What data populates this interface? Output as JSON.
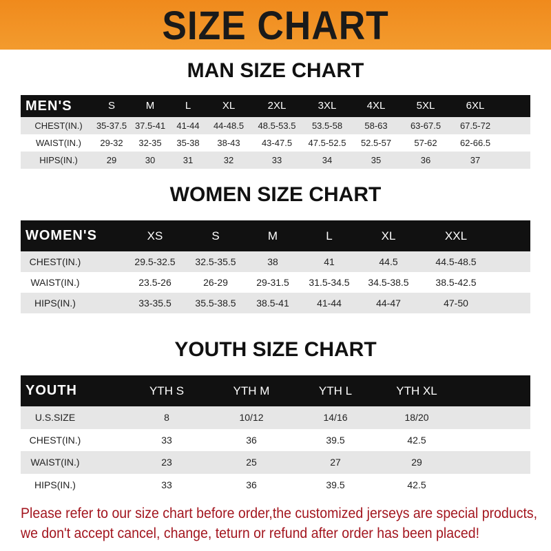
{
  "banner_title": "SIZE CHART",
  "men": {
    "title": "MAN SIZE CHART",
    "header": [
      "MEN'S",
      "S",
      "M",
      "L",
      "XL",
      "2XL",
      "3XL",
      "4XL",
      "5XL",
      "6XL"
    ],
    "rows": [
      [
        "CHEST(IN.)",
        "35-37.5",
        "37.5-41",
        "41-44",
        "44-48.5",
        "48.5-53.5",
        "53.5-58",
        "58-63",
        "63-67.5",
        "67.5-72"
      ],
      [
        "WAIST(IN.)",
        "29-32",
        "32-35",
        "35-38",
        "38-43",
        "43-47.5",
        "47.5-52.5",
        "52.5-57",
        "57-62",
        "62-66.5"
      ],
      [
        "HIPS(IN.)",
        "29",
        "30",
        "31",
        "32",
        "33",
        "34",
        "35",
        "36",
        "37"
      ]
    ]
  },
  "women": {
    "title": "WOMEN SIZE CHART",
    "header": [
      "WOMEN'S",
      "XS",
      "S",
      "M",
      "L",
      "XL",
      "XXL"
    ],
    "rows": [
      [
        "CHEST(IN.)",
        "29.5-32.5",
        "32.5-35.5",
        "38",
        "41",
        "44.5",
        "44.5-48.5"
      ],
      [
        "WAIST(IN.)",
        "23.5-26",
        "26-29",
        "29-31.5",
        "31.5-34.5",
        "34.5-38.5",
        "38.5-42.5"
      ],
      [
        "HIPS(IN.)",
        "33-35.5",
        "35.5-38.5",
        "38.5-41",
        "41-44",
        "44-47",
        "47-50"
      ]
    ]
  },
  "youth": {
    "title": "YOUTH SIZE CHART",
    "header": [
      "YOUTH",
      "YTH S",
      "YTH M",
      "YTH L",
      "YTH XL"
    ],
    "rows": [
      [
        "U.S.SIZE",
        "8",
        "10/12",
        "14/16",
        "18/20"
      ],
      [
        "CHEST(IN.)",
        "33",
        "36",
        "39.5",
        "42.5"
      ],
      [
        "WAIST(IN.)",
        "23",
        "25",
        "27",
        "29"
      ],
      [
        "HIPS(IN.)",
        "33",
        "36",
        "39.5",
        "42.5"
      ]
    ]
  },
  "footer": {
    "line1": "Please refer to our size chart before order,the customized jerseys are special products,",
    "line2": "we don't accept cancel, change, teturn or refund after order has been placed!"
  },
  "colors": {
    "banner": "#f08a1c",
    "header_bg": "#111111",
    "row_alt": "#e6e6e6",
    "footer_text": "#a3161f"
  }
}
